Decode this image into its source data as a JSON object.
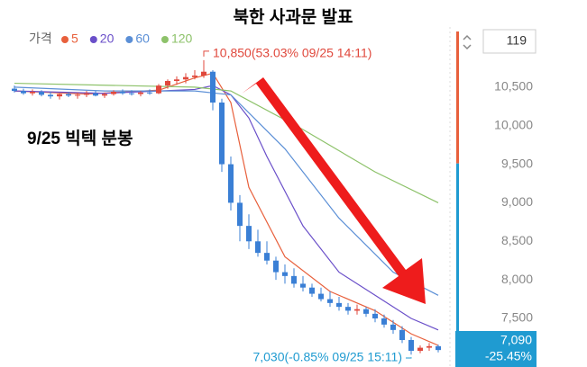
{
  "chart_data": {
    "type": "candlestick",
    "title": "북한 사과문 발표",
    "annotation": "9/25 빅텍 분봉",
    "legend_label": "가격",
    "open": [
      10480,
      10450,
      10420,
      10440,
      10400,
      10380,
      10410,
      10390,
      10400,
      10420,
      10390,
      10410,
      10440,
      10420,
      10410,
      10430,
      10420,
      10520,
      10580,
      10600,
      10630,
      10650,
      10700,
      10300,
      9500,
      9000,
      8700,
      8500,
      8350,
      8250,
      8100,
      8050,
      7950,
      7900,
      7820,
      7750,
      7700,
      7650,
      7600,
      7620,
      7560,
      7500,
      7420,
      7350,
      7220,
      7080,
      7120,
      7140
    ],
    "high": [
      10520,
      10480,
      10470,
      10460,
      10440,
      10420,
      10440,
      10430,
      10450,
      10450,
      10430,
      10460,
      10470,
      10460,
      10450,
      10470,
      10540,
      10600,
      10640,
      10680,
      10720,
      10850,
      10720,
      10350,
      9600,
      9100,
      8850,
      8650,
      8500,
      8300,
      8200,
      8150,
      8050,
      7950,
      7900,
      7850,
      7780,
      7700,
      7680,
      7650,
      7620,
      7550,
      7480,
      7400,
      7260,
      7150,
      7180,
      7160
    ],
    "low": [
      10430,
      10400,
      10390,
      10380,
      10350,
      10340,
      10370,
      10350,
      10370,
      10380,
      10360,
      10390,
      10400,
      10390,
      10380,
      10400,
      10410,
      10480,
      10530,
      10550,
      10600,
      10620,
      10200,
      9400,
      8900,
      8500,
      8400,
      8300,
      8200,
      8000,
      7950,
      7900,
      7850,
      7780,
      7720,
      7650,
      7600,
      7550,
      7550,
      7520,
      7450,
      7380,
      7300,
      7180,
      7030,
      7050,
      7080,
      7060
    ],
    "close": [
      10450,
      10420,
      10440,
      10400,
      10380,
      10410,
      10390,
      10400,
      10420,
      10390,
      10410,
      10440,
      10420,
      10410,
      10430,
      10420,
      10520,
      10580,
      10600,
      10630,
      10650,
      10700,
      10300,
      9500,
      9000,
      8700,
      8500,
      8350,
      8250,
      8100,
      8050,
      7950,
      7900,
      7820,
      7750,
      7700,
      7650,
      7600,
      7620,
      7560,
      7500,
      7420,
      7350,
      7220,
      7080,
      7120,
      7140,
      7090
    ],
    "up_color": "#e0483c",
    "down_color": "#3a7fd5",
    "series": [
      {
        "name": "5",
        "color": "#e8603c",
        "x": [
          0,
          8,
          16,
          20,
          22,
          24,
          26,
          30,
          35,
          40,
          44,
          47
        ],
        "values": [
          10450,
          10410,
          10460,
          10620,
          10680,
          10300,
          9200,
          8300,
          7850,
          7600,
          7300,
          7150
        ]
      },
      {
        "name": "20",
        "color": "#6a4fc9",
        "x": [
          0,
          10,
          20,
          22,
          24,
          26,
          28,
          32,
          36,
          40,
          44,
          47
        ],
        "values": [
          10450,
          10420,
          10470,
          10520,
          10400,
          10100,
          9600,
          8700,
          8100,
          7800,
          7500,
          7350
        ]
      },
      {
        "name": "60",
        "color": "#5b8fd6",
        "x": [
          0,
          10,
          20,
          24,
          30,
          36,
          42,
          47
        ],
        "values": [
          10500,
          10450,
          10450,
          10400,
          9700,
          8800,
          8100,
          7800
        ]
      },
      {
        "name": "120",
        "color": "#8dc26a",
        "x": [
          0,
          20,
          24,
          32,
          40,
          47
        ],
        "values": [
          10550,
          10500,
          10450,
          9950,
          9400,
          9000
        ]
      }
    ],
    "ylim": [
      6870,
      11280
    ],
    "yticks": [
      {
        "value": 10500,
        "label": "10,500"
      },
      {
        "value": 10000,
        "label": "10,000"
      },
      {
        "value": 9500,
        "label": "9,500"
      },
      {
        "value": 9000,
        "label": "9,000"
      },
      {
        "value": 8500,
        "label": "8,500"
      },
      {
        "value": 8000,
        "label": "8,000"
      },
      {
        "value": 7500,
        "label": "7,500"
      }
    ],
    "max_label": "10,850(53.03% 09/25 14:11)",
    "min_label": "7,030(-0.85% 09/25 15:11)",
    "reference_price": 9510,
    "current_price": {
      "value": 7090,
      "label": "7,090"
    },
    "change_label": "-25.45%",
    "count_label": "119"
  }
}
